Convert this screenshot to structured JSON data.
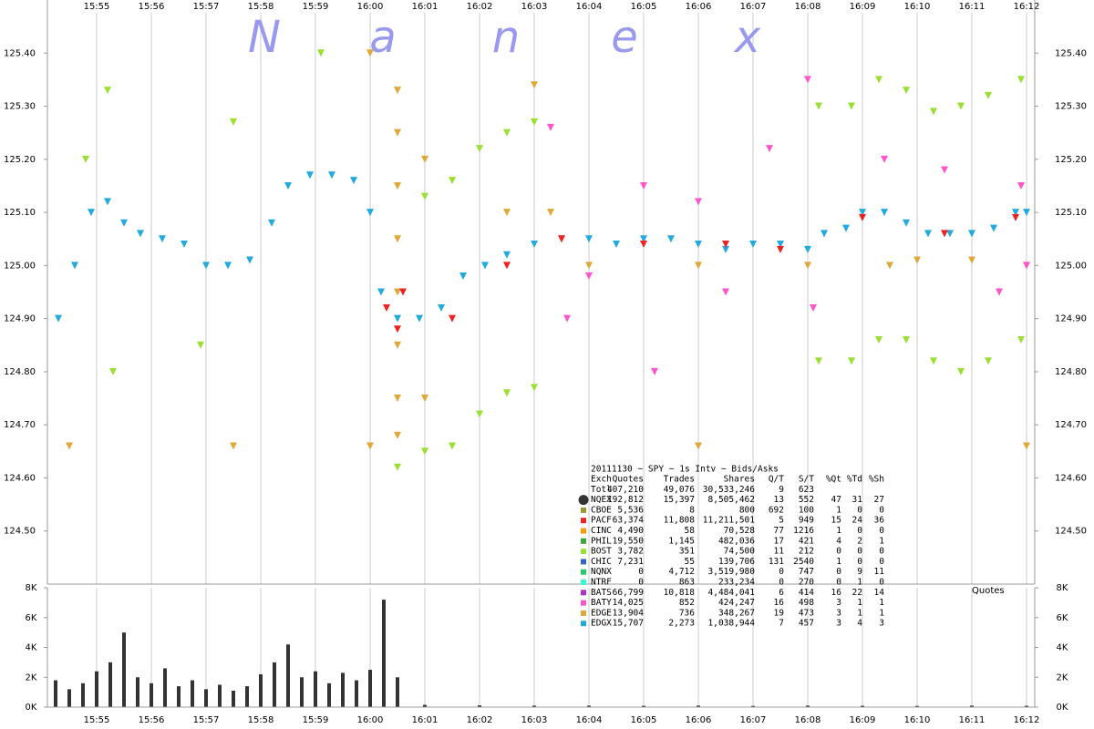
{
  "chart_data": [
    {
      "type": "scatter",
      "xlim": [
        954.1,
        972.15
      ],
      "xticks": [
        {
          "value": 955,
          "label": "15:55"
        },
        {
          "value": 956,
          "label": "15:56"
        },
        {
          "value": 957,
          "label": "15:57"
        },
        {
          "value": 958,
          "label": "15:58"
        },
        {
          "value": 959,
          "label": "15:59"
        },
        {
          "value": 960,
          "label": "16:00"
        },
        {
          "value": 961,
          "label": "16:01"
        },
        {
          "value": 962,
          "label": "16:02"
        },
        {
          "value": 963,
          "label": "16:03"
        },
        {
          "value": 964,
          "label": "16:04"
        },
        {
          "value": 965,
          "label": "16:05"
        },
        {
          "value": 966,
          "label": "16:06"
        },
        {
          "value": 967,
          "label": "16:07"
        },
        {
          "value": 968,
          "label": "16:08"
        },
        {
          "value": 969,
          "label": "16:09"
        },
        {
          "value": 970,
          "label": "16:10"
        },
        {
          "value": 971,
          "label": "16:11"
        },
        {
          "value": 972,
          "label": "16:12"
        }
      ],
      "ylim": [
        124.4,
        125.5
      ],
      "yticks": [
        {
          "value": 124.5,
          "label": "124.50"
        },
        {
          "value": 124.6,
          "label": "124.60"
        },
        {
          "value": 124.7,
          "label": "124.70"
        },
        {
          "value": 124.8,
          "label": "124.80"
        },
        {
          "value": 124.9,
          "label": "124.90"
        },
        {
          "value": 125.0,
          "label": "125.00"
        },
        {
          "value": 125.1,
          "label": "125.10"
        },
        {
          "value": 125.2,
          "label": "125.20"
        },
        {
          "value": 125.3,
          "label": "125.30"
        },
        {
          "value": 125.4,
          "label": "125.40"
        }
      ],
      "grid": true,
      "series": [
        {
          "name": "BOST",
          "color": "#99e033",
          "x": [
            960.5,
            961.0,
            961.5,
            962.0,
            962.5,
            963.0,
            968.2,
            968.8,
            969.3,
            969.8,
            970.3,
            970.8,
            971.3,
            971.9,
            960.5,
            961.0,
            961.5,
            962.0,
            962.5,
            963.0,
            968.2,
            968.8,
            969.3,
            969.8,
            970.3,
            970.8,
            971.3,
            971.9,
            955.2,
            954.8,
            957.5,
            959.1,
            955.3,
            956.9
          ],
          "values": [
            125.15,
            125.13,
            125.16,
            125.22,
            125.25,
            125.27,
            125.3,
            125.3,
            125.35,
            125.33,
            125.29,
            125.3,
            125.32,
            125.35,
            124.62,
            124.65,
            124.66,
            124.72,
            124.76,
            124.77,
            124.82,
            124.82,
            124.86,
            124.86,
            124.82,
            124.8,
            124.82,
            124.86,
            125.33,
            125.2,
            125.27,
            125.4,
            124.8,
            124.85
          ]
        },
        {
          "name": "EDGE",
          "color": "#e0a838",
          "x": [
            960.0,
            960.5,
            960.5,
            960.5,
            960.5,
            960.5,
            960.5,
            960.5,
            960.5,
            961.0,
            961.0,
            962.5,
            963.3,
            963.0,
            964.0,
            966.0,
            968.0,
            969.5,
            970.0,
            971.0,
            972.0,
            954.5,
            960.0,
            972.0,
            957.5,
            966.0
          ],
          "values": [
            125.4,
            125.33,
            125.25,
            125.15,
            125.05,
            124.95,
            124.85,
            124.75,
            124.68,
            125.2,
            124.75,
            125.1,
            125.1,
            125.34,
            125.0,
            125.0,
            125.0,
            125.0,
            125.01,
            125.01,
            125.0,
            124.66,
            124.66,
            124.66,
            124.66,
            124.66
          ]
        },
        {
          "name": "BATY",
          "color": "#ff55cc",
          "x": [
            963.3,
            963.6,
            964.0,
            965.0,
            966.0,
            966.5,
            967.3,
            968.0,
            968.1,
            969.4,
            970.5,
            971.5,
            971.9,
            972.0,
            965.2
          ],
          "values": [
            125.26,
            124.9,
            124.98,
            125.15,
            125.12,
            124.95,
            125.22,
            125.35,
            124.92,
            125.2,
            125.18,
            124.95,
            125.15,
            125.0,
            124.8
          ]
        },
        {
          "name": "EDGX",
          "color": "#22aadd",
          "x": [
            954.3,
            954.6,
            954.9,
            955.2,
            955.5,
            955.8,
            956.2,
            956.6,
            957.0,
            957.4,
            957.8,
            958.2,
            958.5,
            958.9,
            959.3,
            959.7,
            960.0,
            960.2,
            960.5,
            960.9,
            961.3,
            961.7,
            962.1,
            962.5,
            963.0,
            963.5,
            964.0,
            964.5,
            965.0,
            965.5,
            966.0,
            966.5,
            967.0,
            967.5,
            968.0,
            968.3,
            968.7,
            969.0,
            969.4,
            969.8,
            970.2,
            970.6,
            971.0,
            971.4,
            971.8,
            972.0
          ],
          "values": [
            124.9,
            125.0,
            125.1,
            125.12,
            125.08,
            125.06,
            125.05,
            125.04,
            125.0,
            125.0,
            125.01,
            125.08,
            125.15,
            125.17,
            125.17,
            125.16,
            125.1,
            124.95,
            124.9,
            124.9,
            124.92,
            124.98,
            125.0,
            125.02,
            125.04,
            125.05,
            125.05,
            125.04,
            125.05,
            125.05,
            125.04,
            125.03,
            125.04,
            125.04,
            125.03,
            125.06,
            125.07,
            125.1,
            125.1,
            125.08,
            125.06,
            125.06,
            125.06,
            125.07,
            125.1,
            125.1
          ]
        },
        {
          "name": "PACF",
          "color": "#ee2222",
          "x": [
            960.3,
            960.5,
            960.6,
            961.5,
            962.5,
            963.5,
            965.0,
            966.5,
            967.5,
            969.0,
            970.5,
            971.8
          ],
          "values": [
            124.92,
            124.88,
            124.95,
            124.9,
            125.0,
            125.05,
            125.04,
            125.04,
            125.03,
            125.09,
            125.06,
            125.09
          ]
        }
      ]
    },
    {
      "type": "bar",
      "label": "Quotes",
      "xlim": [
        954.1,
        972.15
      ],
      "xticks": [
        {
          "value": 955,
          "label": "15:55"
        },
        {
          "value": 956,
          "label": "15:56"
        },
        {
          "value": 957,
          "label": "15:57"
        },
        {
          "value": 958,
          "label": "15:58"
        },
        {
          "value": 959,
          "label": "15:59"
        },
        {
          "value": 960,
          "label": "16:00"
        },
        {
          "value": 961,
          "label": "16:01"
        },
        {
          "value": 962,
          "label": "16:02"
        },
        {
          "value": 963,
          "label": "16:03"
        },
        {
          "value": 964,
          "label": "16:04"
        },
        {
          "value": 965,
          "label": "16:05"
        },
        {
          "value": 966,
          "label": "16:06"
        },
        {
          "value": 967,
          "label": "16:07"
        },
        {
          "value": 968,
          "label": "16:08"
        },
        {
          "value": 969,
          "label": "16:09"
        },
        {
          "value": 970,
          "label": "16:10"
        },
        {
          "value": 971,
          "label": "16:11"
        },
        {
          "value": 972,
          "label": "16:12"
        }
      ],
      "ylim": [
        0,
        8000
      ],
      "yticks": [
        {
          "value": 0,
          "label": "0K"
        },
        {
          "value": 2000,
          "label": "2K"
        },
        {
          "value": 4000,
          "label": "4K"
        },
        {
          "value": 6000,
          "label": "6K"
        },
        {
          "value": 8000,
          "label": "8K"
        }
      ],
      "color": "#333333",
      "x": [
        954.25,
        954.5,
        954.75,
        955,
        955.25,
        955.5,
        955.75,
        956,
        956.25,
        956.5,
        956.75,
        957,
        957.25,
        957.5,
        957.75,
        958,
        958.25,
        958.5,
        958.75,
        959,
        959.25,
        959.5,
        959.75,
        960,
        960.25,
        960.5,
        961,
        962,
        963,
        964,
        965,
        966,
        967,
        968,
        969,
        970,
        971,
        972
      ],
      "values": [
        1800,
        1200,
        1600,
        2400,
        3000,
        5000,
        2000,
        1600,
        2600,
        1400,
        1800,
        1200,
        1500,
        1100,
        1400,
        2200,
        3000,
        4200,
        2000,
        2400,
        1600,
        2300,
        1800,
        2500,
        7200,
        2000,
        150,
        120,
        100,
        100,
        90,
        100,
        80,
        100,
        90,
        80,
        100,
        90
      ]
    }
  ],
  "watermark_letters": [
    "N",
    "a",
    "n",
    "e",
    "x"
  ],
  "table": {
    "title": "20111130 ~ SPY ~ 1s Intv ~ Bids/Asks",
    "header": [
      "Exch",
      "Quotes",
      "Trades",
      "Shares",
      "Q/T",
      "S/T",
      "%Qt",
      "%Td",
      "%Sh"
    ],
    "row_colors": [
      null,
      "#333333",
      "#999933",
      "#ee2222",
      "#ff9900",
      "#33aa33",
      "#99e033",
      "#3366cc",
      "#22cc66",
      "#33ffcc",
      "#aa33cc",
      "#ff55cc",
      "#e0a838",
      "#22aadd"
    ],
    "rows": [
      [
        "Totl",
        "407,210",
        "49,076",
        "30,533,246",
        "9",
        "623"
      ],
      [
        "NQEX",
        "192,812",
        "15,397",
        "8,505,462",
        "13",
        "552",
        "47",
        "31",
        "27"
      ],
      [
        "CBOE",
        "5,536",
        "8",
        "800",
        "692",
        "100",
        "1",
        "0",
        "0"
      ],
      [
        "PACF",
        "63,374",
        "11,808",
        "11,211,501",
        "5",
        "949",
        "15",
        "24",
        "36"
      ],
      [
        "CINC",
        "4,490",
        "58",
        "70,528",
        "77",
        "1216",
        "1",
        "0",
        "0"
      ],
      [
        "PHIL",
        "19,550",
        "1,145",
        "482,036",
        "17",
        "421",
        "4",
        "2",
        "1"
      ],
      [
        "BOST",
        "3,782",
        "351",
        "74,500",
        "11",
        "212",
        "0",
        "0",
        "0"
      ],
      [
        "CHIC",
        "7,231",
        "55",
        "139,706",
        "131",
        "2540",
        "1",
        "0",
        "0"
      ],
      [
        "NQNX",
        "0",
        "4,712",
        "3,519,980",
        "0",
        "747",
        "0",
        "9",
        "11"
      ],
      [
        "NTRF",
        "0",
        "863",
        "233,234",
        "0",
        "270",
        "0",
        "1",
        "0"
      ],
      [
        "BATS",
        "66,799",
        "10,818",
        "4,484,041",
        "6",
        "414",
        "16",
        "22",
        "14"
      ],
      [
        "BATY",
        "14,025",
        "852",
        "424,247",
        "16",
        "498",
        "3",
        "1",
        "1"
      ],
      [
        "EDGE",
        "13,904",
        "736",
        "348,267",
        "19",
        "473",
        "3",
        "1",
        "1"
      ],
      [
        "EDGX",
        "15,707",
        "2,273",
        "1,038,944",
        "7",
        "457",
        "3",
        "4",
        "3"
      ]
    ]
  }
}
